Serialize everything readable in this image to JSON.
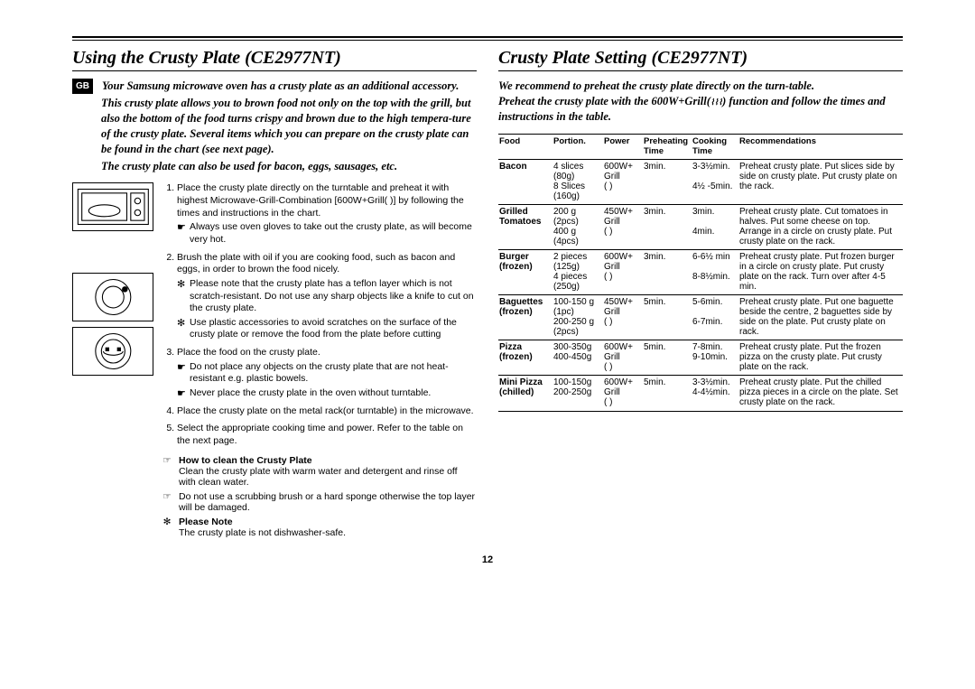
{
  "page_number": "12",
  "left": {
    "title": "Using the Crusty Plate (CE2977NT)",
    "gb_badge": "GB",
    "intro1": "Your Samsung microwave oven has a crusty plate as an additional accessory.",
    "intro2": "This crusty plate allows you to brown food not only on the top with the grill, but also the bottom of the food turns crispy and brown due to the high tempera-ture of the crusty plate. Several items which you can prepare on the crusty plate can be found in the chart (see next page).",
    "intro3": "The crusty plate can also be used for bacon, eggs, sausages, etc.",
    "steps": [
      {
        "text": "Place the crusty plate directly on the turntable and preheat it with highest Microwave-Grill-Combination [600W+Grill( )] by following the times and instructions in the chart.",
        "subs": [
          {
            "mark": "☛",
            "text": "Always use oven gloves to take out the crusty plate, as will become very hot."
          }
        ]
      },
      {
        "text": "Brush the plate with oil if you are cooking food, such as bacon and eggs, in order to brown the food nicely.",
        "subs": [
          {
            "mark": "✻",
            "text": "Please note that the crusty plate has a teflon layer which is not scratch-resistant. Do not use any sharp objects like a knife to cut on the crusty plate."
          },
          {
            "mark": "✻",
            "text": "Use plastic accessories to avoid scratches on the surface of the crusty plate or remove the food from the plate before cutting"
          }
        ]
      },
      {
        "text": "Place the food on the crusty plate.",
        "subs": [
          {
            "mark": "☛",
            "text": "Do not place any objects on the crusty plate that are not heat-resistant e.g. plastic bowels."
          },
          {
            "mark": "☛",
            "text": "Never place the crusty plate in the oven without turntable."
          }
        ]
      },
      {
        "text": "Place the crusty plate on the metal rack(or turntable) in the microwave.",
        "subs": []
      },
      {
        "text": "Select the appropriate cooking time and power. Refer to the table on the next page.",
        "subs": []
      }
    ],
    "notes": [
      {
        "mark": "☞",
        "bold": "How to clean the Crusty Plate",
        "text": "Clean the crusty plate with warm water and detergent and rinse off with clean water."
      },
      {
        "mark": "☞",
        "bold": "",
        "text": "Do not use a scrubbing brush or a hard sponge otherwise the top layer will be damaged."
      },
      {
        "mark": "✻",
        "bold": "Please Note",
        "text": "The crusty plate is not dishwasher-safe."
      }
    ]
  },
  "right": {
    "title": "Crusty Plate Setting (CE2977NT)",
    "intro1": "We recommend to preheat the crusty plate directly on the turn-table.",
    "intro2_a": "Preheat the crusty plate with the 600W+Grill(",
    "intro2_b": ") function and follow the times and instructions in the table.",
    "headers": [
      "Food",
      "Portion.",
      "Power",
      "Preheating Time",
      "Cooking Time",
      "Recommendations"
    ],
    "rows": [
      {
        "food": "Bacon",
        "portion": "4 slices\n(80g)\n8 Slices\n(160g)",
        "power": "600W+\nGrill\n(     )",
        "pre": "3min.",
        "cook": "3-3½min.\n\n4½ -5min.",
        "rec": "Preheat crusty plate. Put slices side by side on crusty plate. Put crusty plate on the rack."
      },
      {
        "food": "Grilled Tomatoes",
        "portion": "200 g\n(2pcs)\n400 g\n(4pcs)",
        "power": "450W+\nGrill\n(     )",
        "pre": "3min.",
        "cook": "3min.\n\n4min.",
        "rec": "Preheat crusty plate. Cut tomatoes in halves. Put some cheese on top. Arrange in a circle on crusty plate. Put crusty plate on the rack."
      },
      {
        "food": "Burger (frozen)",
        "portion": "2 pieces\n(125g)\n4 pieces\n(250g)",
        "power": "600W+\nGrill\n(     )",
        "pre": "3min.",
        "cook": "6-6½ min\n\n8-8½min.",
        "rec": "Preheat crusty plate. Put frozen burger in a circle on crusty plate. Put crusty plate on the rack. Turn over after 4-5 min."
      },
      {
        "food": "Baguettes (frozen)",
        "portion": "100-150 g\n(1pc)\n200-250 g\n(2pcs)",
        "power": "450W+\nGrill\n(     )",
        "pre": "5min.",
        "cook": "5-6min.\n\n6-7min.",
        "rec": "Preheat crusty plate. Put one baguette beside the centre, 2 baguettes side by side on the plate. Put crusty plate on rack."
      },
      {
        "food": "Pizza (frozen)",
        "portion": "300-350g\n400-450g",
        "power": "600W+\nGrill\n(     )",
        "pre": "5min.",
        "cook": "7-8min.\n9-10min.",
        "rec": "Preheat crusty plate. Put the frozen pizza on the crusty plate. Put crusty plate on the rack."
      },
      {
        "food": "Mini Pizza (chilled)",
        "portion": "100-150g\n200-250g",
        "power": "600W+\nGrill\n(     )",
        "pre": "5min.",
        "cook": "3-3½min.\n4-4½min.",
        "rec": "Preheat crusty plate. Put the chilled pizza pieces in a circle on the plate. Set crusty plate on the rack."
      }
    ]
  }
}
